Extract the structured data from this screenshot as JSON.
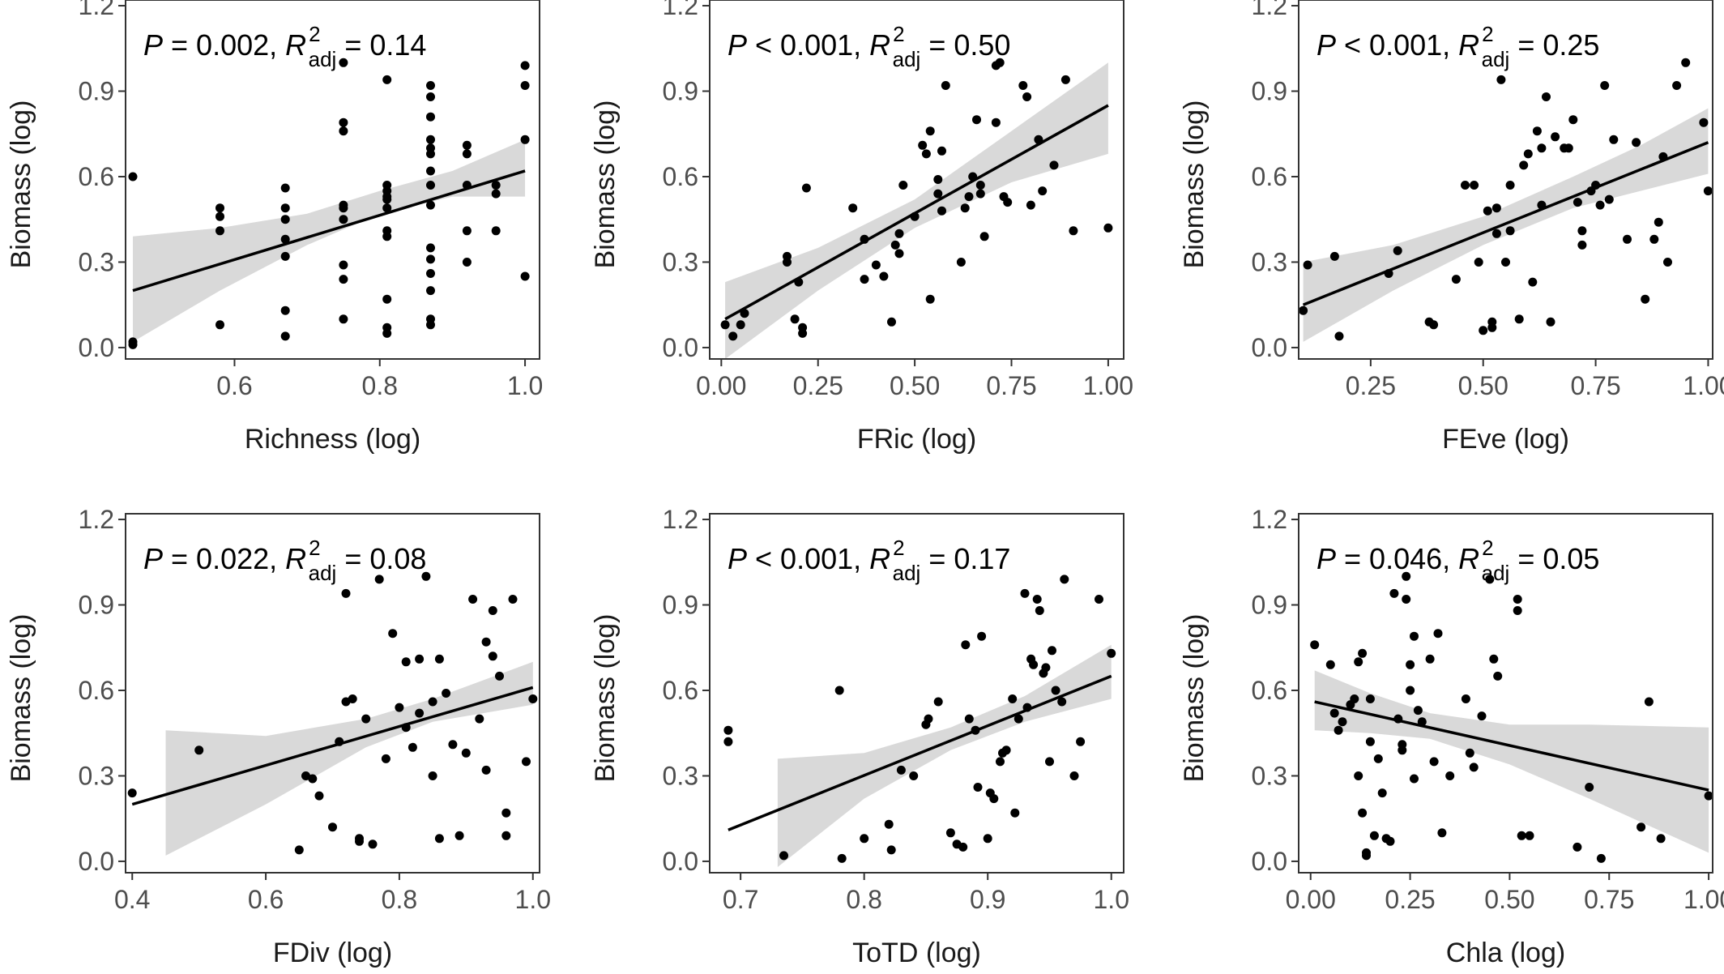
{
  "chart_data": [
    {
      "type": "scatter",
      "xlabel": "Richness (log)",
      "ylabel": "Biomass (log)",
      "stat": {
        "p_label": "P",
        "p_rel": "=",
        "p_value": "0.002",
        "r_label": "R",
        "r_sup": "2",
        "r_sub": "adj",
        "r_value": "= 0.14"
      },
      "xlim": [
        0.45,
        1.02
      ],
      "ylim": [
        -0.04,
        1.22
      ],
      "xticks": [
        0.6,
        0.8,
        1.0
      ],
      "xtick_labels": [
        "0.6",
        "0.8",
        "1.0"
      ],
      "yticks": [
        0.0,
        0.3,
        0.6,
        0.9,
        1.2
      ],
      "ytick_labels": [
        "0.0",
        "0.3",
        "0.6",
        "0.9",
        "1.2"
      ],
      "fit": {
        "x": [
          0.46,
          1.0
        ],
        "y": [
          0.2,
          0.62
        ]
      },
      "band": {
        "x": [
          0.46,
          0.58,
          0.7,
          0.8,
          0.9,
          1.0
        ],
        "lower": [
          0.02,
          0.2,
          0.36,
          0.47,
          0.53,
          0.53
        ],
        "upper": [
          0.39,
          0.42,
          0.47,
          0.55,
          0.62,
          0.73
        ]
      },
      "x": [
        0.46,
        0.46,
        0.46,
        0.58,
        0.58,
        0.58,
        0.58,
        0.67,
        0.67,
        0.67,
        0.67,
        0.67,
        0.67,
        0.67,
        0.75,
        0.75,
        0.75,
        0.75,
        0.75,
        0.75,
        0.75,
        0.75,
        0.75,
        0.81,
        0.81,
        0.81,
        0.81,
        0.81,
        0.81,
        0.81,
        0.81,
        0.81,
        0.81,
        0.81,
        0.87,
        0.87,
        0.87,
        0.87,
        0.87,
        0.87,
        0.87,
        0.87,
        0.87,
        0.87,
        0.87,
        0.87,
        0.87,
        0.87,
        0.87,
        0.92,
        0.92,
        0.92,
        0.92,
        0.92,
        0.96,
        0.96,
        0.96,
        1.0,
        1.0,
        1.0,
        1.0
      ],
      "y": [
        0.6,
        0.02,
        0.01,
        0.49,
        0.46,
        0.41,
        0.08,
        0.56,
        0.49,
        0.38,
        0.32,
        0.13,
        0.04,
        0.45,
        1.0,
        0.79,
        0.76,
        0.5,
        0.49,
        0.29,
        0.24,
        0.1,
        0.45,
        0.94,
        0.57,
        0.55,
        0.52,
        0.41,
        0.39,
        0.17,
        0.07,
        0.05,
        0.49,
        0.53,
        0.92,
        0.88,
        0.81,
        0.73,
        0.7,
        0.68,
        0.62,
        0.57,
        0.5,
        0.35,
        0.31,
        0.26,
        0.2,
        0.1,
        0.08,
        0.71,
        0.68,
        0.57,
        0.41,
        0.3,
        0.57,
        0.54,
        0.41,
        0.99,
        0.92,
        0.73,
        0.25
      ]
    },
    {
      "type": "scatter",
      "xlabel": "FRic (log)",
      "ylabel": "Biomass (log)",
      "stat": {
        "p_label": "P",
        "p_rel": "<",
        "p_value": "0.001",
        "r_label": "R",
        "r_sup": "2",
        "r_sub": "adj",
        "r_value": "= 0.50"
      },
      "xlim": [
        -0.03,
        1.04
      ],
      "ylim": [
        -0.04,
        1.22
      ],
      "xticks": [
        0.0,
        0.25,
        0.5,
        0.75,
        1.0
      ],
      "xtick_labels": [
        "0.00",
        "0.25",
        "0.50",
        "0.75",
        "1.00"
      ],
      "yticks": [
        0.0,
        0.3,
        0.6,
        0.9,
        1.2
      ],
      "ytick_labels": [
        "0.0",
        "0.3",
        "0.6",
        "0.9",
        "1.2"
      ],
      "fit": {
        "x": [
          0.01,
          1.0
        ],
        "y": [
          0.1,
          0.85
        ]
      },
      "band": {
        "x": [
          0.01,
          0.25,
          0.5,
          0.75,
          1.0
        ],
        "lower": [
          -0.04,
          0.2,
          0.42,
          0.58,
          0.68
        ],
        "upper": [
          0.23,
          0.35,
          0.52,
          0.76,
          1.0
        ]
      },
      "x": [
        0.01,
        0.03,
        0.05,
        0.06,
        0.17,
        0.17,
        0.19,
        0.2,
        0.21,
        0.21,
        0.22,
        0.34,
        0.37,
        0.37,
        0.4,
        0.42,
        0.44,
        0.45,
        0.46,
        0.46,
        0.47,
        0.5,
        0.52,
        0.53,
        0.54,
        0.54,
        0.56,
        0.56,
        0.57,
        0.57,
        0.58,
        0.62,
        0.63,
        0.64,
        0.65,
        0.66,
        0.67,
        0.67,
        0.68,
        0.71,
        0.71,
        0.72,
        0.73,
        0.74,
        0.78,
        0.79,
        0.8,
        0.82,
        0.83,
        0.86,
        0.89,
        0.91,
        1.0
      ],
      "y": [
        0.08,
        0.04,
        0.08,
        0.12,
        0.32,
        0.3,
        0.1,
        0.23,
        0.07,
        0.05,
        0.56,
        0.49,
        0.38,
        0.24,
        0.29,
        0.25,
        0.09,
        0.36,
        0.33,
        0.4,
        0.57,
        0.46,
        0.71,
        0.68,
        0.17,
        0.76,
        0.59,
        0.54,
        0.69,
        0.48,
        0.92,
        0.3,
        0.49,
        0.53,
        0.6,
        0.8,
        0.54,
        0.57,
        0.39,
        0.79,
        0.99,
        1.0,
        0.53,
        0.51,
        0.92,
        0.88,
        0.5,
        0.73,
        0.55,
        0.64,
        0.94,
        0.41,
        0.42
      ]
    },
    {
      "type": "scatter",
      "xlabel": "FEve (log)",
      "ylabel": "Biomass (log)",
      "stat": {
        "p_label": "P",
        "p_rel": "<",
        "p_value": "0.001",
        "r_label": "R",
        "r_sup": "2",
        "r_sub": "adj",
        "r_value": "= 0.25"
      },
      "xlim": [
        0.09,
        1.01
      ],
      "ylim": [
        -0.04,
        1.22
      ],
      "xticks": [
        0.25,
        0.5,
        0.75,
        1.0
      ],
      "xtick_labels": [
        "0.25",
        "0.50",
        "0.75",
        "1.00"
      ],
      "yticks": [
        0.0,
        0.3,
        0.6,
        0.9,
        1.2
      ],
      "ytick_labels": [
        "0.0",
        "0.3",
        "0.6",
        "0.9",
        "1.2"
      ],
      "fit": {
        "x": [
          0.1,
          1.0
        ],
        "y": [
          0.15,
          0.72
        ]
      },
      "band": {
        "x": [
          0.1,
          0.3,
          0.5,
          0.7,
          0.85,
          1.0
        ],
        "lower": [
          0.02,
          0.2,
          0.36,
          0.49,
          0.55,
          0.61
        ],
        "upper": [
          0.3,
          0.36,
          0.46,
          0.6,
          0.71,
          0.84
        ]
      },
      "x": [
        0.1,
        0.11,
        0.17,
        0.18,
        0.29,
        0.31,
        0.38,
        0.39,
        0.44,
        0.46,
        0.48,
        0.49,
        0.5,
        0.51,
        0.52,
        0.52,
        0.53,
        0.53,
        0.54,
        0.55,
        0.56,
        0.56,
        0.58,
        0.59,
        0.6,
        0.61,
        0.62,
        0.63,
        0.63,
        0.64,
        0.65,
        0.66,
        0.68,
        0.69,
        0.7,
        0.71,
        0.72,
        0.72,
        0.74,
        0.75,
        0.76,
        0.77,
        0.78,
        0.79,
        0.82,
        0.84,
        0.86,
        0.88,
        0.89,
        0.9,
        0.91,
        0.93,
        0.95,
        0.99,
        1.0
      ],
      "y": [
        0.13,
        0.29,
        0.32,
        0.04,
        0.26,
        0.34,
        0.09,
        0.08,
        0.24,
        0.57,
        0.57,
        0.3,
        0.06,
        0.48,
        0.09,
        0.07,
        0.49,
        0.4,
        0.94,
        0.3,
        0.57,
        0.41,
        0.1,
        0.64,
        0.68,
        0.23,
        0.76,
        0.7,
        0.5,
        0.88,
        0.09,
        0.74,
        0.7,
        0.7,
        0.8,
        0.51,
        0.36,
        0.41,
        0.55,
        0.57,
        0.5,
        0.92,
        0.52,
        0.73,
        0.38,
        0.72,
        0.17,
        0.38,
        0.44,
        0.67,
        0.3,
        0.92,
        1.0,
        0.79,
        0.55
      ]
    },
    {
      "type": "scatter",
      "xlabel": "FDiv (log)",
      "ylabel": "Biomass (log)",
      "stat": {
        "p_label": "P",
        "p_rel": "=",
        "p_value": "0.022",
        "r_label": "R",
        "r_sup": "2",
        "r_sub": "adj",
        "r_value": "= 0.08"
      },
      "xlim": [
        0.39,
        1.01
      ],
      "ylim": [
        -0.04,
        1.22
      ],
      "xticks": [
        0.4,
        0.6,
        0.8,
        1.0
      ],
      "xtick_labels": [
        "0.4",
        "0.6",
        "0.8",
        "1.0"
      ],
      "yticks": [
        0.0,
        0.3,
        0.6,
        0.9,
        1.2
      ],
      "ytick_labels": [
        "0.0",
        "0.3",
        "0.6",
        "0.9",
        "1.2"
      ],
      "fit": {
        "x": [
          0.4,
          1.0
        ],
        "y": [
          0.2,
          0.61
        ]
      },
      "band": {
        "x": [
          0.45,
          0.6,
          0.75,
          0.85,
          1.0
        ],
        "lower": [
          0.02,
          0.2,
          0.4,
          0.49,
          0.55
        ],
        "upper": [
          0.46,
          0.44,
          0.5,
          0.57,
          0.7
        ]
      },
      "x": [
        0.4,
        0.5,
        0.65,
        0.66,
        0.67,
        0.68,
        0.7,
        0.71,
        0.72,
        0.72,
        0.73,
        0.74,
        0.74,
        0.75,
        0.76,
        0.77,
        0.78,
        0.79,
        0.8,
        0.81,
        0.81,
        0.82,
        0.83,
        0.83,
        0.84,
        0.85,
        0.85,
        0.86,
        0.86,
        0.87,
        0.88,
        0.89,
        0.9,
        0.91,
        0.92,
        0.93,
        0.93,
        0.94,
        0.94,
        0.95,
        0.96,
        0.96,
        0.97,
        0.99,
        1.0
      ],
      "y": [
        0.24,
        0.39,
        0.04,
        0.3,
        0.29,
        0.23,
        0.12,
        0.42,
        0.56,
        0.94,
        0.57,
        0.08,
        0.07,
        0.5,
        0.06,
        0.99,
        0.36,
        0.8,
        0.54,
        0.47,
        0.7,
        0.4,
        0.71,
        0.52,
        1.0,
        0.56,
        0.3,
        0.08,
        0.71,
        0.59,
        0.41,
        0.09,
        0.38,
        0.92,
        0.5,
        0.77,
        0.32,
        0.88,
        0.72,
        0.65,
        0.17,
        0.09,
        0.92,
        0.35,
        0.57
      ]
    },
    {
      "type": "scatter",
      "xlabel": "ToTD (log)",
      "ylabel": "Biomass (log)",
      "stat": {
        "p_label": "P",
        "p_rel": "<",
        "p_value": "0.001",
        "r_label": "R",
        "r_sup": "2",
        "r_sub": "adj",
        "r_value": "= 0.17"
      },
      "xlim": [
        0.675,
        1.01
      ],
      "ylim": [
        -0.04,
        1.22
      ],
      "xticks": [
        0.7,
        0.8,
        0.9,
        1.0
      ],
      "xtick_labels": [
        "0.7",
        "0.8",
        "0.9",
        "1.0"
      ],
      "yticks": [
        0.0,
        0.3,
        0.6,
        0.9,
        1.2
      ],
      "ytick_labels": [
        "0.0",
        "0.3",
        "0.6",
        "0.9",
        "1.2"
      ],
      "fit": {
        "x": [
          0.69,
          1.0
        ],
        "y": [
          0.11,
          0.65
        ]
      },
      "band": {
        "x": [
          0.73,
          0.8,
          0.87,
          0.93,
          1.0
        ],
        "lower": [
          -0.02,
          0.22,
          0.39,
          0.49,
          0.57
        ],
        "upper": [
          0.36,
          0.38,
          0.47,
          0.58,
          0.76
        ]
      },
      "x": [
        0.69,
        0.69,
        0.735,
        0.78,
        0.782,
        0.8,
        0.82,
        0.822,
        0.83,
        0.84,
        0.85,
        0.852,
        0.86,
        0.87,
        0.875,
        0.88,
        0.882,
        0.885,
        0.89,
        0.892,
        0.895,
        0.9,
        0.902,
        0.905,
        0.91,
        0.912,
        0.915,
        0.92,
        0.922,
        0.925,
        0.93,
        0.932,
        0.935,
        0.937,
        0.94,
        0.942,
        0.945,
        0.947,
        0.95,
        0.952,
        0.955,
        0.96,
        0.962,
        0.97,
        0.975,
        0.99,
        1.0
      ],
      "y": [
        0.46,
        0.42,
        0.02,
        0.6,
        0.01,
        0.08,
        0.13,
        0.04,
        0.32,
        0.3,
        0.48,
        0.5,
        0.56,
        0.1,
        0.06,
        0.05,
        0.76,
        0.5,
        0.46,
        0.26,
        0.79,
        0.08,
        0.24,
        0.22,
        0.35,
        0.38,
        0.39,
        0.57,
        0.17,
        0.5,
        0.94,
        0.54,
        0.71,
        0.69,
        0.92,
        0.88,
        0.66,
        0.68,
        0.35,
        0.74,
        0.6,
        0.56,
        0.99,
        0.3,
        0.42,
        0.92,
        0.73
      ]
    },
    {
      "type": "scatter",
      "xlabel": "Chla (log)",
      "ylabel": "Biomass (log)",
      "stat": {
        "p_label": "P",
        "p_rel": "=",
        "p_value": "0.046",
        "r_label": "R",
        "r_sup": "2",
        "r_sub": "adj",
        "r_value": "= 0.05"
      },
      "xlim": [
        -0.03,
        1.01
      ],
      "ylim": [
        -0.04,
        1.22
      ],
      "xticks": [
        0.0,
        0.25,
        0.5,
        0.75,
        1.0
      ],
      "xtick_labels": [
        "0.00",
        "0.25",
        "0.50",
        "0.75",
        "1.00"
      ],
      "yticks": [
        0.0,
        0.3,
        0.6,
        0.9,
        1.2
      ],
      "ytick_labels": [
        "0.0",
        "0.3",
        "0.6",
        "0.9",
        "1.2"
      ],
      "fit": {
        "x": [
          0.01,
          1.0
        ],
        "y": [
          0.56,
          0.25
        ]
      },
      "band": {
        "x": [
          0.01,
          0.15,
          0.3,
          0.5,
          0.7,
          1.0
        ],
        "lower": [
          0.46,
          0.45,
          0.43,
          0.34,
          0.22,
          0.03
        ],
        "upper": [
          0.67,
          0.59,
          0.52,
          0.48,
          0.48,
          0.47
        ]
      },
      "x": [
        0.01,
        0.05,
        0.06,
        0.07,
        0.08,
        0.1,
        0.11,
        0.12,
        0.12,
        0.13,
        0.13,
        0.14,
        0.14,
        0.15,
        0.15,
        0.16,
        0.17,
        0.18,
        0.19,
        0.2,
        0.21,
        0.22,
        0.23,
        0.23,
        0.24,
        0.24,
        0.25,
        0.25,
        0.26,
        0.26,
        0.27,
        0.28,
        0.3,
        0.31,
        0.32,
        0.33,
        0.35,
        0.39,
        0.4,
        0.41,
        0.43,
        0.45,
        0.46,
        0.47,
        0.52,
        0.52,
        0.53,
        0.55,
        0.67,
        0.7,
        0.73,
        0.83,
        0.85,
        0.88,
        1.0
      ],
      "y": [
        0.76,
        0.69,
        0.52,
        0.46,
        0.49,
        0.55,
        0.57,
        0.7,
        0.3,
        0.17,
        0.73,
        0.03,
        0.02,
        0.57,
        0.42,
        0.09,
        0.36,
        0.24,
        0.08,
        0.07,
        0.94,
        0.5,
        0.39,
        0.41,
        1.0,
        0.92,
        0.6,
        0.69,
        0.79,
        0.29,
        0.53,
        0.49,
        0.71,
        0.35,
        0.8,
        0.1,
        0.3,
        0.57,
        0.38,
        0.33,
        0.51,
        0.99,
        0.71,
        0.65,
        0.92,
        0.88,
        0.09,
        0.09,
        0.05,
        0.26,
        0.01,
        0.12,
        0.56,
        0.08,
        0.23
      ]
    }
  ]
}
